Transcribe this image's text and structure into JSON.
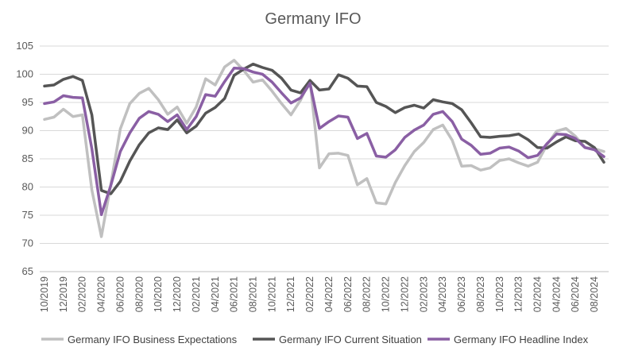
{
  "chart_data": {
    "type": "line",
    "title": "Germany IFO",
    "xlabel": "",
    "ylabel": "",
    "ylim": [
      65,
      105
    ],
    "yticks": [
      65,
      70,
      75,
      80,
      85,
      90,
      95,
      100,
      105
    ],
    "grid": "horizontal",
    "legend": "bottom",
    "tick_labels": [
      "10/2019",
      "12/2019",
      "02/2020",
      "04/2020",
      "06/2020",
      "08/2020",
      "10/2020",
      "12/2020",
      "02/2021",
      "04/2021",
      "06/2021",
      "08/2021",
      "10/2021",
      "12/2021",
      "02/2022",
      "04/2022",
      "06/2022",
      "08/2022",
      "10/2022",
      "12/2022",
      "02/2023",
      "04/2023",
      "06/2023",
      "08/2023",
      "10/2023",
      "12/2023",
      "02/2024",
      "04/2024",
      "06/2024",
      "08/2024"
    ],
    "categories": [
      "10/2019",
      "11/2019",
      "12/2019",
      "01/2020",
      "02/2020",
      "03/2020",
      "04/2020",
      "05/2020",
      "06/2020",
      "07/2020",
      "08/2020",
      "09/2020",
      "10/2020",
      "11/2020",
      "12/2020",
      "01/2021",
      "02/2021",
      "03/2021",
      "04/2021",
      "05/2021",
      "06/2021",
      "07/2021",
      "08/2021",
      "09/2021",
      "10/2021",
      "11/2021",
      "12/2021",
      "01/2022",
      "02/2022",
      "03/2022",
      "04/2022",
      "05/2022",
      "06/2022",
      "07/2022",
      "08/2022",
      "09/2022",
      "10/2022",
      "11/2022",
      "12/2022",
      "01/2023",
      "02/2023",
      "03/2023",
      "04/2023",
      "05/2023",
      "06/2023",
      "07/2023",
      "08/2023",
      "09/2023",
      "10/2023",
      "11/2023",
      "12/2023",
      "01/2024",
      "02/2024",
      "03/2024",
      "04/2024",
      "05/2024",
      "06/2024",
      "07/2024",
      "08/2024",
      "09/2024"
    ],
    "series": [
      {
        "name": "Germany IFO Business Expectations",
        "color": "#c0c0c0",
        "values": [
          92.0,
          92.4,
          93.8,
          92.5,
          92.8,
          79.5,
          71.2,
          80.5,
          90.3,
          94.8,
          96.6,
          97.5,
          95.5,
          92.9,
          94.2,
          91.3,
          94.2,
          99.2,
          98.1,
          101.3,
          102.5,
          100.7,
          98.6,
          99.0,
          97.0,
          94.8,
          92.8,
          95.4,
          98.9,
          83.4,
          85.9,
          86.0,
          85.6,
          80.4,
          81.5,
          77.2,
          77.0,
          80.8,
          83.8,
          86.3,
          87.9,
          90.2,
          91.0,
          88.3,
          83.7,
          83.8,
          83.0,
          83.4,
          84.7,
          85.0,
          84.3,
          83.7,
          84.4,
          87.5,
          89.9,
          90.4,
          89.0,
          87.0,
          86.8,
          86.3
        ]
      },
      {
        "name": "Germany IFO Current Situation",
        "color": "#555555",
        "values": [
          97.9,
          98.1,
          99.1,
          99.6,
          98.9,
          92.8,
          79.4,
          78.8,
          81.0,
          84.6,
          87.5,
          89.6,
          90.5,
          90.2,
          91.9,
          89.6,
          90.8,
          93.1,
          94.1,
          95.7,
          99.8,
          100.9,
          101.8,
          101.2,
          100.7,
          99.3,
          97.2,
          96.7,
          98.9,
          97.2,
          97.4,
          99.9,
          99.3,
          97.9,
          97.8,
          95.0,
          94.3,
          93.2,
          94.1,
          94.5,
          94.0,
          95.5,
          95.1,
          94.8,
          93.7,
          91.4,
          88.9,
          88.8,
          89.0,
          89.1,
          89.4,
          88.4,
          87.0,
          86.9,
          88.0,
          88.9,
          88.2,
          88.1,
          87.0,
          84.4
        ]
      },
      {
        "name": "Germany IFO Headline Index",
        "color": "#8a5fa4",
        "values": [
          94.8,
          95.1,
          96.2,
          95.9,
          95.8,
          86.8,
          75.1,
          80.3,
          86.3,
          89.6,
          92.2,
          93.4,
          92.9,
          91.6,
          92.8,
          90.2,
          92.5,
          96.4,
          96.1,
          98.7,
          101.1,
          101.0,
          100.4,
          100.0,
          98.6,
          96.7,
          94.9,
          95.8,
          98.4,
          90.4,
          91.6,
          92.6,
          92.4,
          88.6,
          89.5,
          85.5,
          85.3,
          86.6,
          88.8,
          90.1,
          91.0,
          92.9,
          93.4,
          91.6,
          88.5,
          87.4,
          85.8,
          86.0,
          86.9,
          87.1,
          86.4,
          85.2,
          85.6,
          87.7,
          89.4,
          89.3,
          88.6,
          87.0,
          86.6,
          85.4
        ]
      }
    ]
  }
}
